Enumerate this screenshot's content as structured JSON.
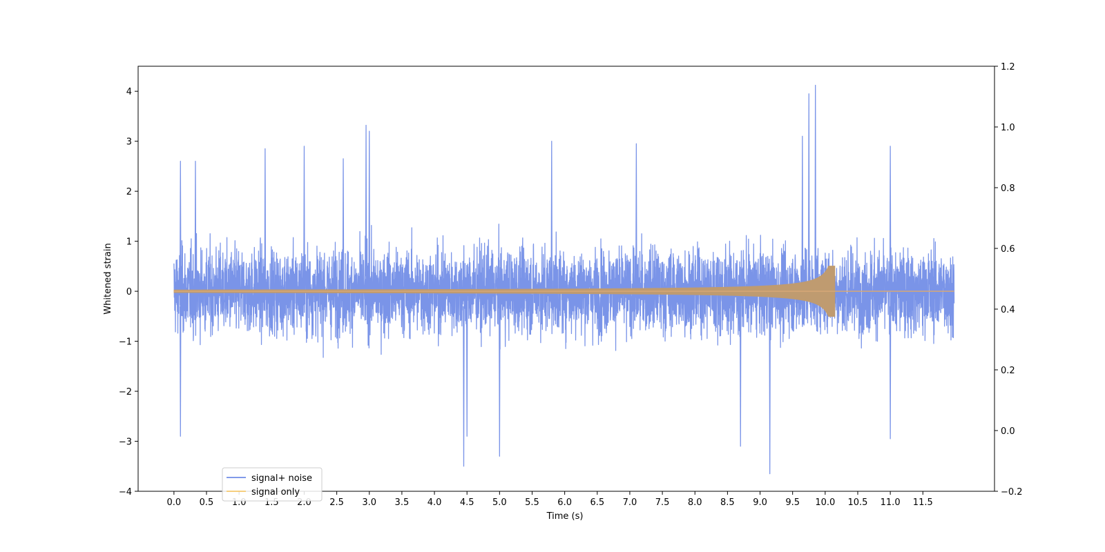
{
  "chart_data": {
    "type": "line",
    "xlabel": "Time (s)",
    "ylabel": "Whitened strain",
    "xlim": [
      -0.55,
      12.6
    ],
    "ylim": [
      -4,
      4.5
    ],
    "y2lim": [
      -0.2,
      1.2
    ],
    "x_ticks": [
      "0.0",
      "0.5",
      "1.0",
      "1.5",
      "2.0",
      "2.5",
      "3.0",
      "3.5",
      "4.0",
      "4.5",
      "5.0",
      "5.5",
      "6.0",
      "6.5",
      "7.0",
      "7.5",
      "8.0",
      "8.5",
      "9.0",
      "9.5",
      "10.0",
      "10.5",
      "11.0",
      "11.5"
    ],
    "y_ticks": [
      "4",
      "3",
      "2",
      "1",
      "0",
      "−1",
      "−2",
      "−3",
      "−4"
    ],
    "y2_ticks": [
      "1.2",
      "1.0",
      "0.8",
      "0.6",
      "0.4",
      "0.2",
      "0.0",
      "−0.2"
    ],
    "legend_position": "lower-left",
    "series": [
      {
        "name": "signal+ noise",
        "color": "#6f8be6",
        "description_values": {
          "t_start": 0.0,
          "t_end": 11.98,
          "typical_min": -1.8,
          "typical_max": 1.8,
          "peaks": [
            {
              "t": 0.1,
              "y": 2.6
            },
            {
              "t": 0.33,
              "y": 2.6
            },
            {
              "t": 0.1,
              "y": -2.9
            },
            {
              "t": 1.4,
              "y": 2.85
            },
            {
              "t": 2.0,
              "y": 2.9
            },
            {
              "t": 2.95,
              "y": 3.32
            },
            {
              "t": 3.0,
              "y": 3.2
            },
            {
              "t": 2.6,
              "y": 2.65
            },
            {
              "t": 4.45,
              "y": -3.5
            },
            {
              "t": 4.5,
              "y": -2.9
            },
            {
              "t": 5.0,
              "y": -3.3
            },
            {
              "t": 5.8,
              "y": 3.0
            },
            {
              "t": 7.1,
              "y": 2.95
            },
            {
              "t": 8.7,
              "y": -3.1
            },
            {
              "t": 9.15,
              "y": -3.65
            },
            {
              "t": 9.75,
              "y": 3.95
            },
            {
              "t": 9.85,
              "y": 4.12
            },
            {
              "t": 9.65,
              "y": 3.1
            },
            {
              "t": 11.0,
              "y": -2.95
            },
            {
              "t": 11.0,
              "y": 2.9
            }
          ]
        }
      },
      {
        "name": "signal only",
        "color": "#f5c76b",
        "description_values": {
          "t_start": 0.0,
          "t_merger": 10.15,
          "t_end": 11.98,
          "peak_amplitude": 0.5,
          "amplitude_at_5s": 0.03,
          "amplitude_at_8s": 0.07,
          "amplitude_at_10s": 0.22
        }
      }
    ]
  }
}
